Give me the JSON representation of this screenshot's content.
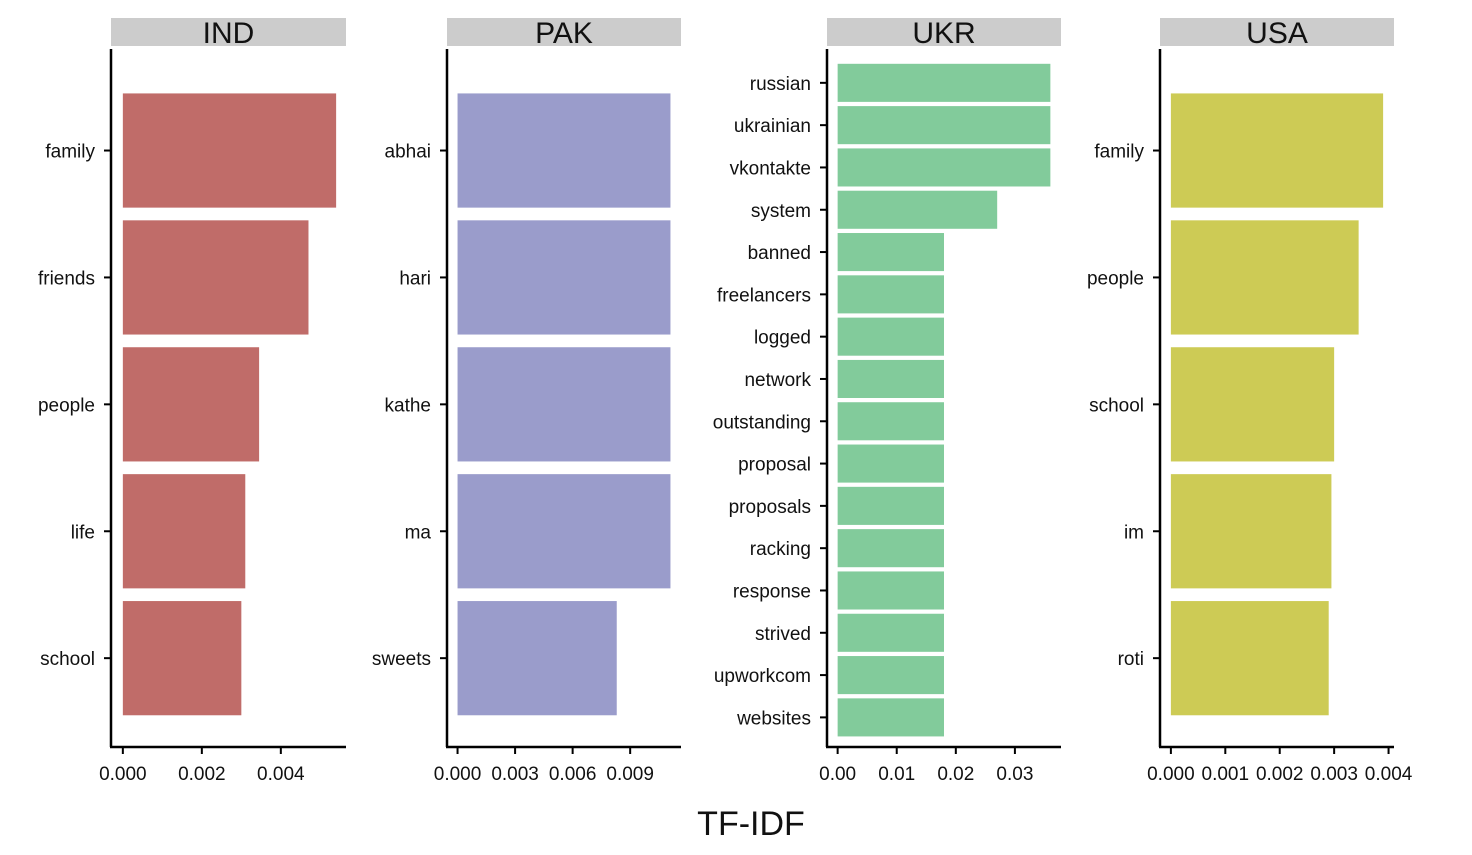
{
  "chart_data": {
    "type": "bar",
    "orientation": "horizontal",
    "xlabel": "TF-IDF",
    "facet_strip_color": "#cccccc",
    "axis_color": "#000000",
    "panels": [
      {
        "title": "IND",
        "color": "#c06c69",
        "categories": [
          "family",
          "friends",
          "people",
          "life",
          "school"
        ],
        "values": [
          0.0054,
          0.0047,
          0.00345,
          0.0031,
          0.003
        ],
        "xlim": [
          -0.0003,
          0.00565
        ],
        "xticks": [
          0,
          0.002,
          0.004
        ],
        "xtick_labels": [
          "0.000",
          "0.002",
          "0.004"
        ]
      },
      {
        "title": "PAK",
        "color": "#9a9ccb",
        "categories": [
          "abhai",
          "hari",
          "kathe",
          "ma",
          "sweets"
        ],
        "values": [
          0.0111,
          0.0111,
          0.0111,
          0.0111,
          0.0083
        ],
        "xlim": [
          -0.00055,
          0.01165
        ],
        "xticks": [
          0,
          0.003,
          0.006,
          0.009
        ],
        "xtick_labels": [
          "0.000",
          "0.003",
          "0.006",
          "0.009"
        ]
      },
      {
        "title": "UKR",
        "color": "#82cb9b",
        "categories": [
          "russian",
          "ukrainian",
          "vkontakte",
          "system",
          "banned",
          "freelancers",
          "logged",
          "network",
          "outstanding",
          "proposal",
          "proposals",
          "racking",
          "response",
          "strived",
          "upworkcom",
          "websites"
        ],
        "values": [
          0.036,
          0.036,
          0.036,
          0.027,
          0.018,
          0.018,
          0.018,
          0.018,
          0.018,
          0.018,
          0.018,
          0.018,
          0.018,
          0.018,
          0.018,
          0.018
        ],
        "xlim": [
          -0.0018,
          0.0378
        ],
        "xticks": [
          0,
          0.01,
          0.02,
          0.03
        ],
        "xtick_labels": [
          "0.00",
          "0.01",
          "0.02",
          "0.03"
        ]
      },
      {
        "title": "USA",
        "color": "#cdcb55",
        "categories": [
          "family",
          "people",
          "school",
          "im",
          "roti"
        ],
        "values": [
          0.0039,
          0.00345,
          0.003,
          0.00295,
          0.0029
        ],
        "xlim": [
          -0.0002,
          0.0041
        ],
        "xticks": [
          0,
          0.001,
          0.002,
          0.003,
          0.004
        ],
        "xtick_labels": [
          "0.000",
          "0.001",
          "0.002",
          "0.003",
          "0.004"
        ]
      }
    ]
  }
}
